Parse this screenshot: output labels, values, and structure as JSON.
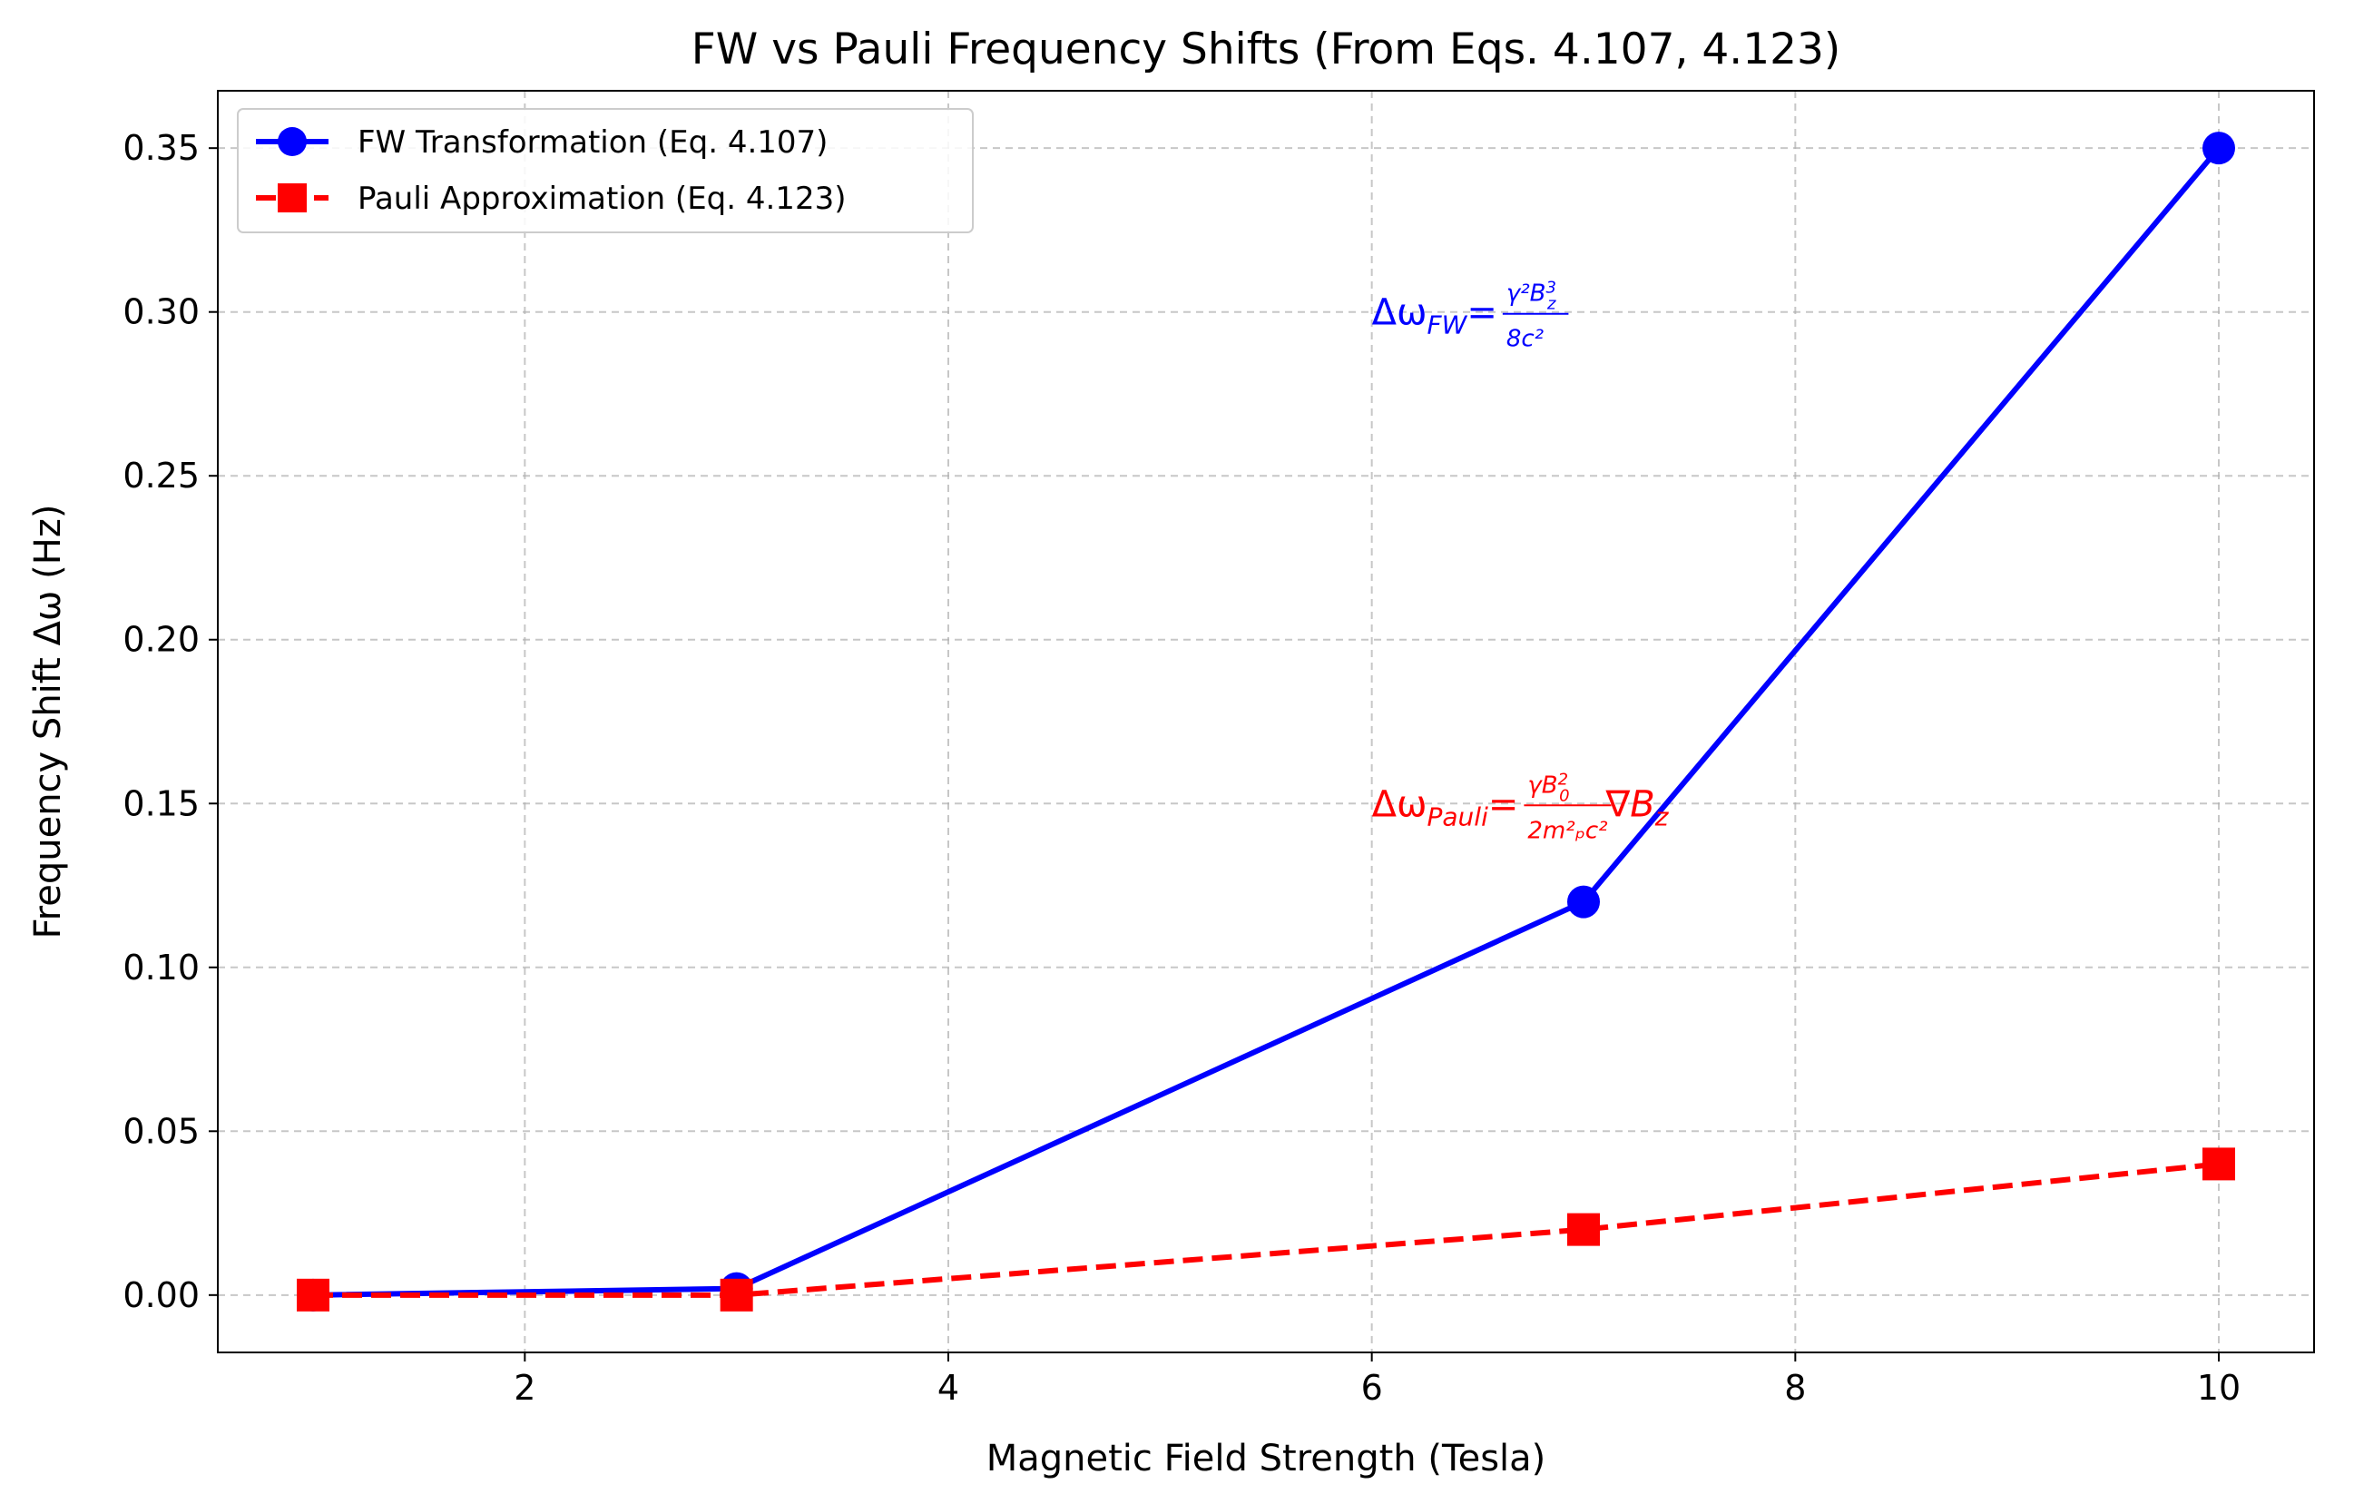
{
  "chart_data": {
    "type": "line",
    "title": "FW vs Pauli Frequency Shifts (From Eqs. 4.107, 4.123)",
    "xlabel": "Magnetic Field Strength (Tesla)",
    "ylabel": "Frequency Shift Δω (Hz)",
    "xlim": [
      0.55,
      10.45
    ],
    "ylim": [
      -0.0175,
      0.3675
    ],
    "xticks": [
      2,
      4,
      6,
      8,
      10
    ],
    "xtick_labels": [
      "2",
      "4",
      "6",
      "8",
      "10"
    ],
    "yticks": [
      0,
      0.05,
      0.1,
      0.15,
      0.2,
      0.25,
      0.3,
      0.35
    ],
    "ytick_labels": [
      "0.00",
      "0.05",
      "0.10",
      "0.15",
      "0.20",
      "0.25",
      "0.30",
      "0.35"
    ],
    "grid": true,
    "legend_position": "top-left",
    "x": [
      1,
      3,
      7,
      10
    ],
    "series": [
      {
        "name": "FW Transformation (Eq. 4.107)",
        "values": [
          0.0,
          0.002,
          0.12,
          0.35
        ],
        "color": "#0000ff",
        "line": "solid",
        "marker": "circle"
      },
      {
        "name": "Pauli Approximation (Eq. 4.123)",
        "values": [
          0.0,
          0.0,
          0.02,
          0.04
        ],
        "color": "#ff0000",
        "line": "dashed",
        "marker": "square"
      }
    ],
    "annotations": [
      {
        "name": "fw-formula",
        "x": 6.0,
        "y": 0.3,
        "color": "#0000ff",
        "lhs": "Δω",
        "lhs_sub": "FW",
        "eq": "=",
        "num": "γ²B",
        "num_sup": "3",
        "num_sub": "z",
        "den": "8c²",
        "tail": "",
        "tail_sub": ""
      },
      {
        "name": "pauli-formula",
        "x": 6.0,
        "y": 0.15,
        "color": "#ff0000",
        "lhs": "Δω",
        "lhs_sub": "Pauli",
        "eq": "=",
        "num": "γB",
        "num_sup": "2",
        "num_sub": "0",
        "den": "2m²ₚc²",
        "tail": "∇B",
        "tail_sub": "z"
      }
    ]
  }
}
